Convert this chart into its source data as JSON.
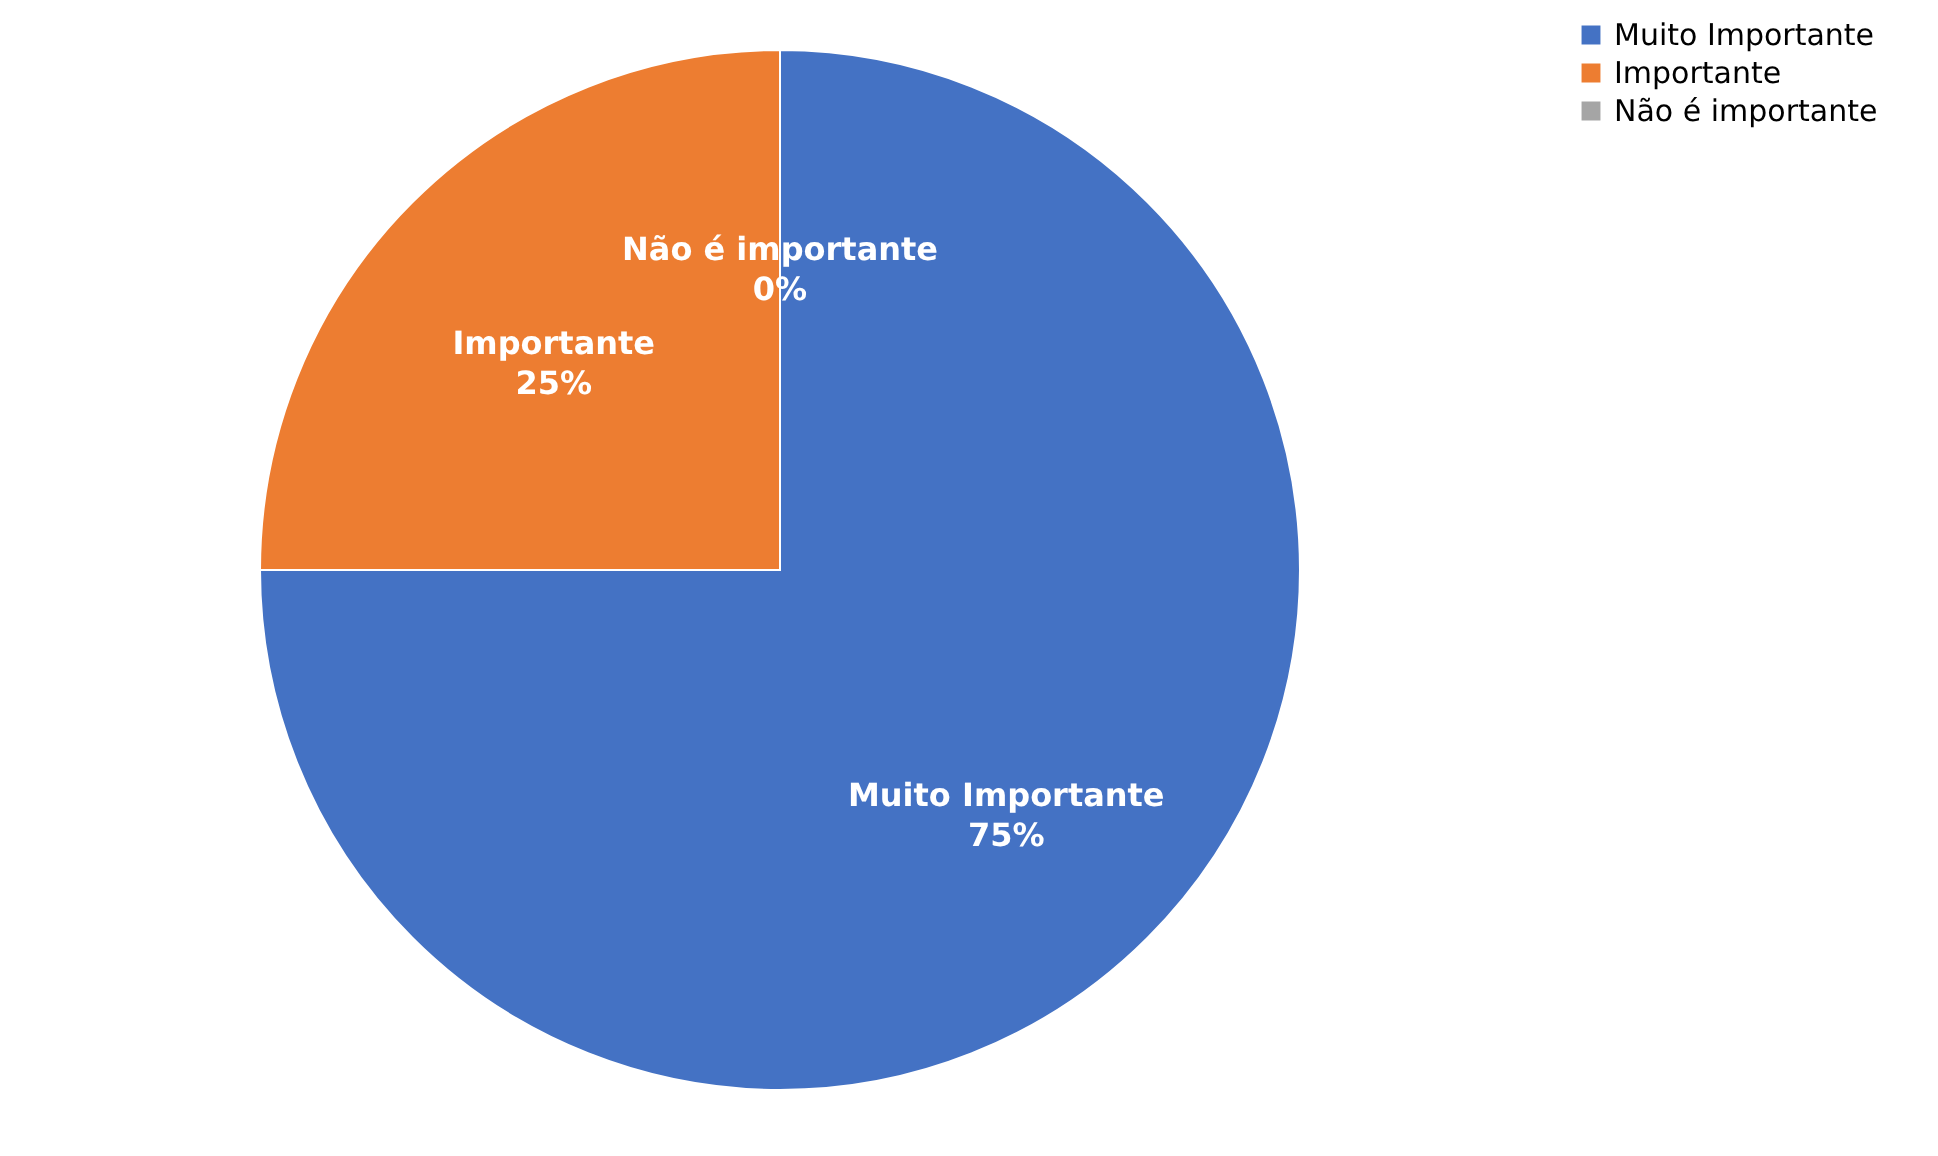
{
  "chart_data": {
    "type": "pie",
    "categories": [
      "Muito Importante",
      "Importante",
      "Não é importante"
    ],
    "values": [
      75,
      25,
      0
    ],
    "colors": [
      "#4472c4",
      "#ed7d31",
      "#a5a5a5"
    ],
    "value_labels": [
      "75%",
      "25%",
      "0%"
    ],
    "legend": "right"
  }
}
